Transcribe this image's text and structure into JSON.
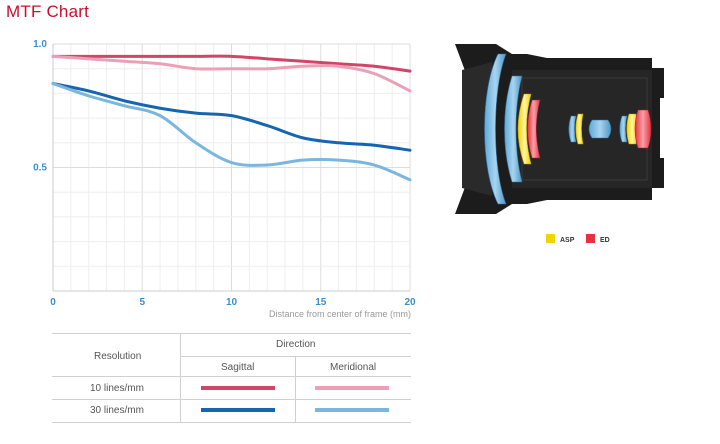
{
  "title": "MTF Chart",
  "colors": {
    "sagittal_10": "#d14567",
    "meridional_10": "#eba0b7",
    "sagittal_30": "#1565b0",
    "meridional_30": "#7bb6de",
    "axis_label": "#3a8fd0",
    "title": "#c8102e",
    "asp": "#f5d200",
    "ed": "#e8303e"
  },
  "chart_data": {
    "type": "line",
    "xlabel": "Distance from center of frame (mm)",
    "ylabel": "",
    "xlim": [
      0,
      20
    ],
    "ylim": [
      0,
      1.0
    ],
    "x_ticks": [
      "0",
      "5",
      "10",
      "15",
      "20"
    ],
    "y_ticks": [
      "1.0",
      "0.5"
    ],
    "grid": true,
    "series": [
      {
        "key": "sagittal_10",
        "x": [
          0,
          2,
          4,
          6,
          8,
          10,
          12,
          14,
          16,
          18,
          20
        ],
        "y": [
          0.95,
          0.95,
          0.95,
          0.95,
          0.95,
          0.95,
          0.94,
          0.93,
          0.92,
          0.91,
          0.89
        ]
      },
      {
        "key": "meridional_10",
        "x": [
          0,
          2,
          4,
          6,
          8,
          10,
          12,
          14,
          16,
          18,
          20
        ],
        "y": [
          0.95,
          0.94,
          0.93,
          0.92,
          0.9,
          0.9,
          0.9,
          0.91,
          0.91,
          0.88,
          0.81
        ]
      },
      {
        "key": "sagittal_30",
        "x": [
          0,
          2,
          4,
          6,
          8,
          10,
          12,
          14,
          16,
          18,
          20
        ],
        "y": [
          0.84,
          0.81,
          0.77,
          0.74,
          0.72,
          0.71,
          0.67,
          0.62,
          0.6,
          0.59,
          0.57
        ]
      },
      {
        "key": "meridional_30",
        "x": [
          0,
          2,
          4,
          6,
          8,
          10,
          12,
          14,
          16,
          18,
          20
        ],
        "y": [
          0.84,
          0.79,
          0.75,
          0.71,
          0.6,
          0.52,
          0.51,
          0.53,
          0.53,
          0.51,
          0.45
        ]
      }
    ]
  },
  "legend": {
    "resolution_header": "Resolution",
    "direction_header": "Direction",
    "sagittal": "Sagittal",
    "meridional": "Meridional",
    "row_10": "10 lines/mm",
    "row_30": "30 lines/mm"
  },
  "lens_legend": {
    "asp": "ASP",
    "ed": "ED"
  }
}
